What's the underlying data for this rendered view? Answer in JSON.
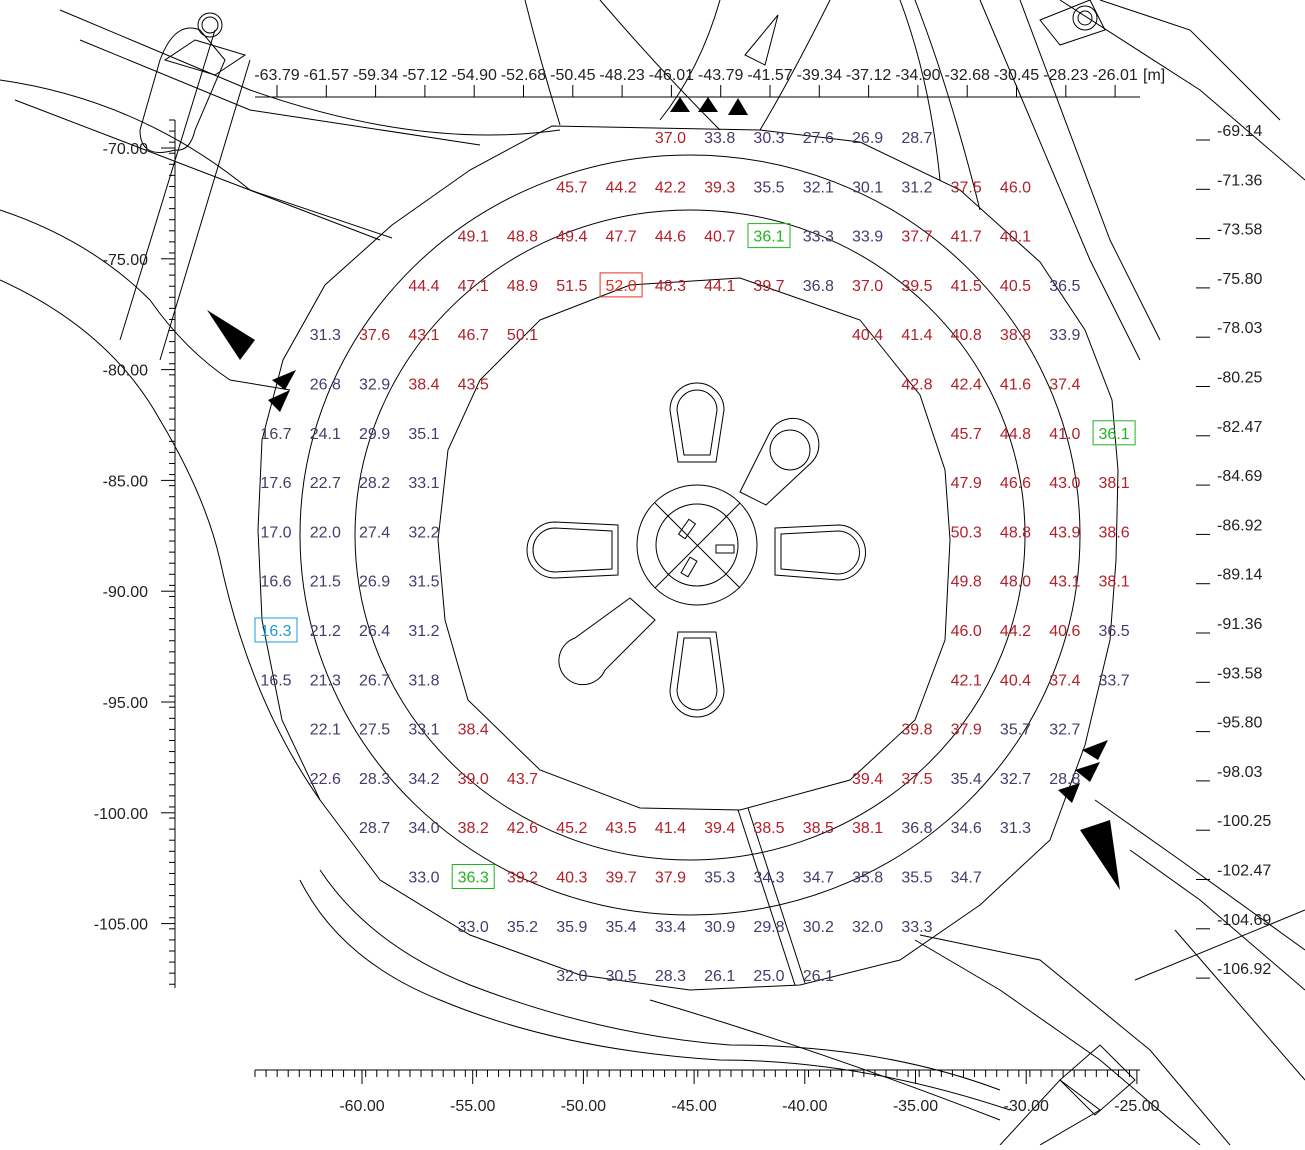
{
  "axes": {
    "top_unit": "[m]",
    "top_ticks": [
      "-63.79",
      "-61.57",
      "-59.34",
      "-57.12",
      "-54.90",
      "-52.68",
      "-50.45",
      "-48.23",
      "-46.01",
      "-43.79",
      "-41.57",
      "-39.34",
      "-37.12",
      "-34.90",
      "-32.68",
      "-30.45",
      "-28.23",
      "-26.01"
    ],
    "right_ticks": [
      "-69.14",
      "-71.36",
      "-73.58",
      "-75.80",
      "-78.03",
      "-80.25",
      "-82.47",
      "-84.69",
      "-86.92",
      "-89.14",
      "-91.36",
      "-93.58",
      "-95.80",
      "-98.03",
      "-100.25",
      "-102.47",
      "-104.69",
      "-106.92"
    ],
    "left_ticks": [
      "-70.00",
      "-75.00",
      "-80.00",
      "-85.00",
      "-90.00",
      "-95.00",
      "-100.00",
      "-105.00"
    ],
    "bottom_ticks": [
      "-60.00",
      "-55.00",
      "-50.00",
      "-45.00",
      "-40.00",
      "-35.00",
      "-30.00",
      "-25.00"
    ]
  },
  "colors": {
    "high": "#b3202a",
    "low": "#4a3a6b",
    "minimum": "#1a9ad9",
    "maximum": "#e8301e",
    "marked": "#1fb51f"
  },
  "grid": {
    "rows": [
      [
        null,
        null,
        null,
        null,
        null,
        null,
        null,
        null,
        "37.0",
        "33.8",
        "30.3",
        "27.6",
        "26.9",
        "28.7",
        null,
        null,
        null,
        null
      ],
      [
        null,
        null,
        null,
        null,
        null,
        null,
        "45.7",
        "44.2",
        "42.2",
        "39.3",
        "35.5",
        "32.1",
        "30.1",
        "31.2",
        "37.5",
        "46.0",
        null,
        null
      ],
      [
        null,
        null,
        null,
        null,
        "49.1",
        "48.8",
        "49.4",
        "47.7",
        "44.6",
        "40.7",
        "36.1",
        "33.3",
        "33.9",
        "37.7",
        "41.7",
        "40.1",
        null,
        null
      ],
      [
        null,
        null,
        null,
        "44.4",
        "47.1",
        "48.9",
        "51.5",
        "52.0",
        "48.3",
        "44.1",
        "39.7",
        "36.8",
        "37.0",
        "39.5",
        "41.5",
        "40.5",
        "36.5",
        null
      ],
      [
        null,
        "31.3",
        "37.6",
        "43.1",
        "46.7",
        "50.1",
        null,
        null,
        null,
        null,
        null,
        null,
        "40.4",
        "41.4",
        "40.8",
        "38.8",
        "33.9",
        null
      ],
      [
        null,
        "26.8",
        "32.9",
        "38.4",
        "43.5",
        null,
        null,
        null,
        null,
        null,
        null,
        null,
        null,
        "42.8",
        "42.4",
        "41.6",
        "37.4",
        null
      ],
      [
        "16.7",
        "24.1",
        "29.9",
        "35.1",
        null,
        null,
        null,
        null,
        null,
        null,
        null,
        null,
        null,
        null,
        "45.7",
        "44.8",
        "41.0",
        "36.1"
      ],
      [
        "17.6",
        "22.7",
        "28.2",
        "33.1",
        null,
        null,
        null,
        null,
        null,
        null,
        null,
        null,
        null,
        null,
        "47.9",
        "46.6",
        "43.0",
        "38.1"
      ],
      [
        "17.0",
        "22.0",
        "27.4",
        "32.2",
        null,
        null,
        null,
        null,
        null,
        null,
        null,
        null,
        null,
        null,
        "50.3",
        "48.8",
        "43.9",
        "38.6"
      ],
      [
        "16.6",
        "21.5",
        "26.9",
        "31.5",
        null,
        null,
        null,
        null,
        null,
        null,
        null,
        null,
        null,
        null,
        "49.8",
        "48.0",
        "43.1",
        "38.1"
      ],
      [
        "16.3",
        "21.2",
        "26.4",
        "31.2",
        null,
        null,
        null,
        null,
        null,
        null,
        null,
        null,
        null,
        null,
        "46.0",
        "44.2",
        "40.6",
        "36.5"
      ],
      [
        "16.5",
        "21.3",
        "26.7",
        "31.8",
        null,
        null,
        null,
        null,
        null,
        null,
        null,
        null,
        null,
        null,
        "42.1",
        "40.4",
        "37.4",
        "33.7"
      ],
      [
        null,
        "22.1",
        "27.5",
        "33.1",
        "38.4",
        null,
        null,
        null,
        null,
        null,
        null,
        null,
        null,
        "39.8",
        "37.9",
        "35.7",
        "32.7",
        null
      ],
      [
        null,
        "22.6",
        "28.3",
        "34.2",
        "39.0",
        "43.7",
        null,
        null,
        null,
        null,
        null,
        null,
        "39.4",
        "37.5",
        "35.4",
        "32.7",
        "28.8",
        null
      ],
      [
        null,
        null,
        "28.7",
        "34.0",
        "38.2",
        "42.6",
        "45.2",
        "43.5",
        "41.4",
        "39.4",
        "38.5",
        "38.5",
        "38.1",
        "36.8",
        "34.6",
        "31.3",
        null,
        null
      ],
      [
        null,
        null,
        null,
        "33.0",
        "36.3",
        "39.2",
        "40.3",
        "39.7",
        "37.9",
        "35.3",
        "34.3",
        "34.7",
        "35.8",
        "35.5",
        "34.7",
        null,
        null,
        null
      ],
      [
        null,
        null,
        null,
        null,
        "33.0",
        "35.2",
        "35.9",
        "35.4",
        "33.4",
        "30.9",
        "29.8",
        "30.2",
        "32.0",
        "33.3",
        null,
        null,
        null,
        null
      ],
      [
        null,
        null,
        null,
        null,
        null,
        null,
        "32.0",
        "30.5",
        "28.3",
        "26.1",
        "25.0",
        "26.1",
        null,
        null,
        null,
        null,
        null,
        null
      ]
    ],
    "highlights": [
      {
        "row": 10,
        "col": 0,
        "kind": "minimum"
      },
      {
        "row": 3,
        "col": 7,
        "kind": "maximum"
      },
      {
        "row": 2,
        "col": 10,
        "kind": "marked"
      },
      {
        "row": 6,
        "col": 17,
        "kind": "marked"
      },
      {
        "row": 15,
        "col": 4,
        "kind": "marked"
      }
    ]
  }
}
